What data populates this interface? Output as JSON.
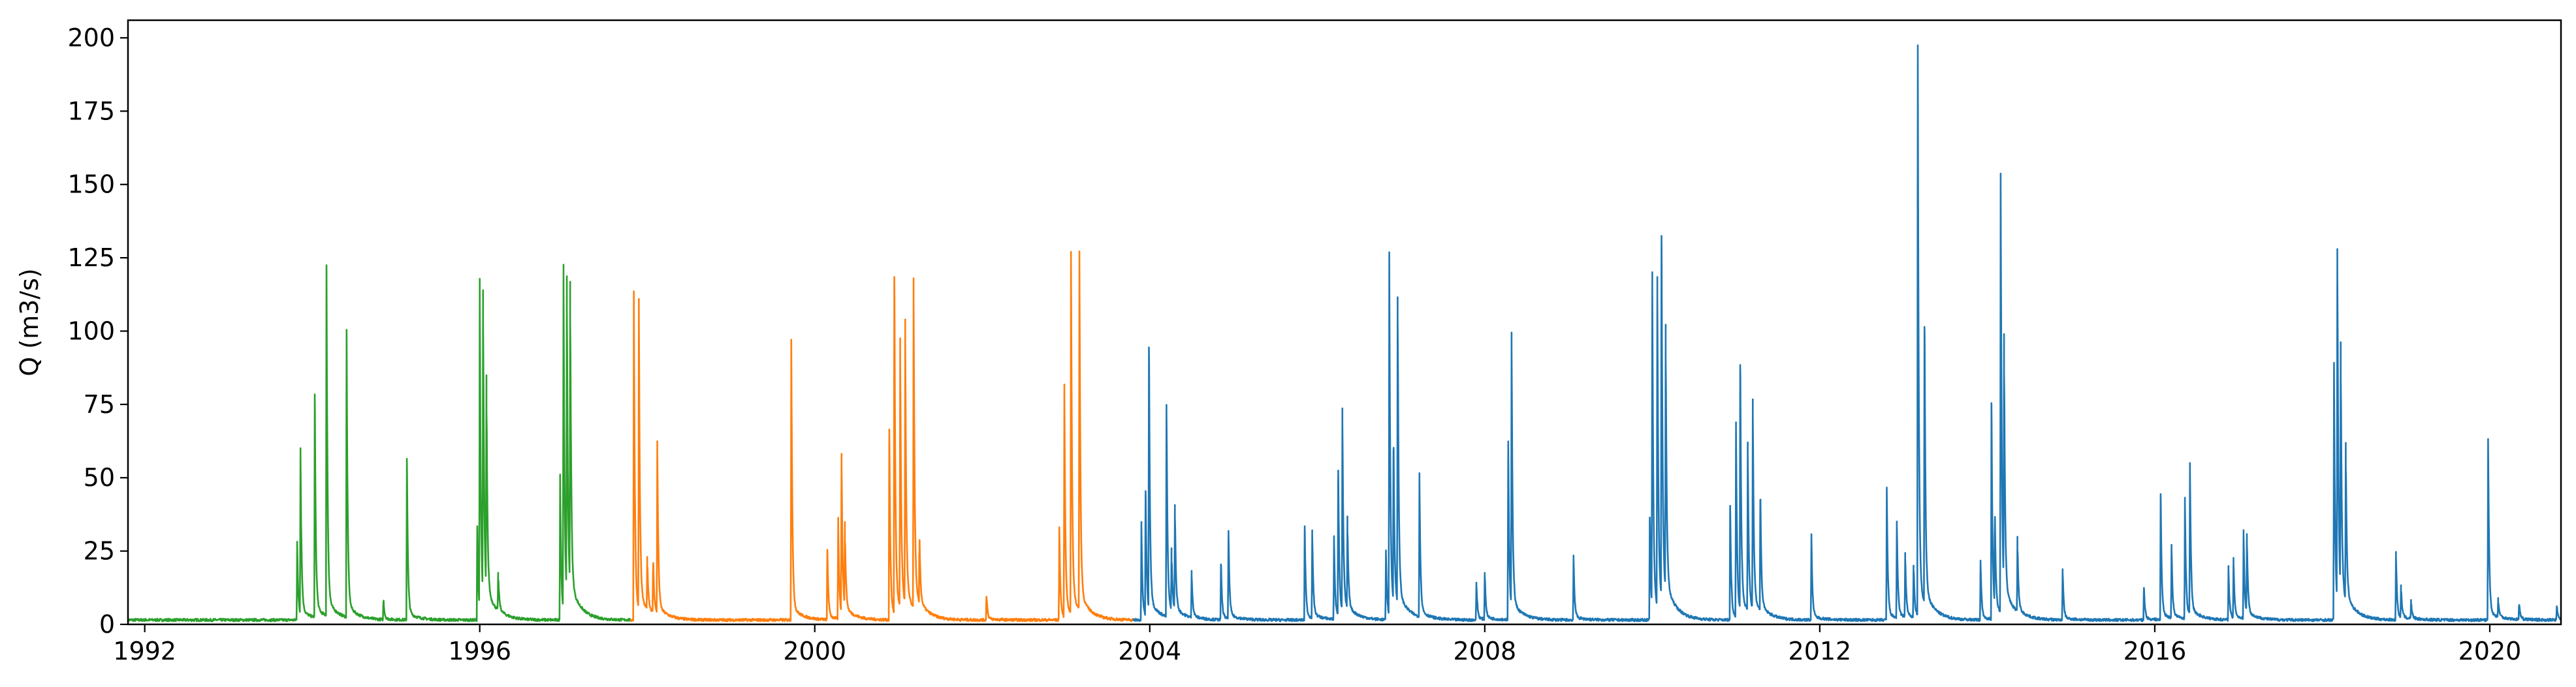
{
  "chart_data": {
    "type": "line",
    "title": "",
    "xlabel": "",
    "ylabel": "Q (m3/s)",
    "x_ticks": [
      "1992",
      "1996",
      "2000",
      "2004",
      "2008",
      "2012",
      "2016",
      "2020"
    ],
    "y_ticks": [
      "0",
      "25",
      "50",
      "75",
      "100",
      "125",
      "150",
      "175",
      "200"
    ],
    "xlim": [
      1991.8,
      2020.85
    ],
    "ylim": [
      0,
      206
    ],
    "grid": false,
    "legend": "none",
    "baseflow": 1.5,
    "series": [
      {
        "color": "#2ca02c",
        "x_range": [
          1991.8,
          1997.8
        ],
        "peaks": [
          {
            "x": 1993.82,
            "y": 27
          },
          {
            "x": 1993.86,
            "y": 57
          },
          {
            "x": 1994.03,
            "y": 78
          },
          {
            "x": 1994.17,
            "y": 122
          },
          {
            "x": 1994.41,
            "y": 100
          },
          {
            "x": 1994.85,
            "y": 7
          },
          {
            "x": 1995.13,
            "y": 56
          },
          {
            "x": 1995.97,
            "y": 33
          },
          {
            "x": 1996.0,
            "y": 112
          },
          {
            "x": 1996.04,
            "y": 103
          },
          {
            "x": 1996.08,
            "y": 72
          },
          {
            "x": 1996.22,
            "y": 13
          },
          {
            "x": 1996.96,
            "y": 50
          },
          {
            "x": 1997.0,
            "y": 118
          },
          {
            "x": 1997.04,
            "y": 107
          },
          {
            "x": 1997.08,
            "y": 104
          }
        ]
      },
      {
        "color": "#ff7f0e",
        "x_range": [
          1997.8,
          2003.8
        ],
        "peaks": [
          {
            "x": 1997.84,
            "y": 112
          },
          {
            "x": 1997.9,
            "y": 105
          },
          {
            "x": 1998.0,
            "y": 18
          },
          {
            "x": 1998.07,
            "y": 19
          },
          {
            "x": 1998.12,
            "y": 58
          },
          {
            "x": 1999.72,
            "y": 96
          },
          {
            "x": 2000.15,
            "y": 25
          },
          {
            "x": 2000.28,
            "y": 34
          },
          {
            "x": 2000.32,
            "y": 54
          },
          {
            "x": 2000.36,
            "y": 28
          },
          {
            "x": 2000.89,
            "y": 66
          },
          {
            "x": 2000.95,
            "y": 118
          },
          {
            "x": 2001.02,
            "y": 91
          },
          {
            "x": 2001.08,
            "y": 96
          },
          {
            "x": 2001.18,
            "y": 112
          },
          {
            "x": 2001.25,
            "y": 24
          },
          {
            "x": 2002.05,
            "y": 9
          },
          {
            "x": 2002.92,
            "y": 32
          },
          {
            "x": 2002.98,
            "y": 79
          },
          {
            "x": 2003.06,
            "y": 123
          },
          {
            "x": 2003.16,
            "y": 122
          }
        ]
      },
      {
        "color": "#1f77b4",
        "x_range": [
          2003.8,
          2020.85
        ],
        "peaks": [
          {
            "x": 2003.9,
            "y": 33
          },
          {
            "x": 2003.95,
            "y": 45
          },
          {
            "x": 2003.99,
            "y": 94
          },
          {
            "x": 2004.2,
            "y": 72
          },
          {
            "x": 2004.26,
            "y": 21
          },
          {
            "x": 2004.3,
            "y": 36
          },
          {
            "x": 2004.5,
            "y": 16
          },
          {
            "x": 2004.85,
            "y": 20
          },
          {
            "x": 2004.94,
            "y": 30
          },
          {
            "x": 2005.85,
            "y": 33
          },
          {
            "x": 2005.94,
            "y": 30
          },
          {
            "x": 2006.2,
            "y": 28
          },
          {
            "x": 2006.25,
            "y": 52
          },
          {
            "x": 2006.3,
            "y": 69
          },
          {
            "x": 2006.36,
            "y": 31
          },
          {
            "x": 2006.82,
            "y": 24
          },
          {
            "x": 2006.86,
            "y": 124
          },
          {
            "x": 2006.91,
            "y": 59
          },
          {
            "x": 2006.96,
            "y": 104
          },
          {
            "x": 2007.22,
            "y": 49
          },
          {
            "x": 2007.9,
            "y": 13
          },
          {
            "x": 2008.0,
            "y": 16
          },
          {
            "x": 2008.28,
            "y": 61
          },
          {
            "x": 2008.32,
            "y": 94
          },
          {
            "x": 2009.06,
            "y": 22
          },
          {
            "x": 2009.97,
            "y": 36
          },
          {
            "x": 2010.0,
            "y": 114
          },
          {
            "x": 2010.06,
            "y": 112
          },
          {
            "x": 2010.11,
            "y": 132
          },
          {
            "x": 2010.16,
            "y": 90
          },
          {
            "x": 2010.93,
            "y": 40
          },
          {
            "x": 2011.0,
            "y": 66
          },
          {
            "x": 2011.05,
            "y": 88
          },
          {
            "x": 2011.14,
            "y": 57
          },
          {
            "x": 2011.2,
            "y": 71
          },
          {
            "x": 2011.29,
            "y": 42
          },
          {
            "x": 2011.9,
            "y": 29
          },
          {
            "x": 2012.8,
            "y": 45
          },
          {
            "x": 2012.92,
            "y": 33
          },
          {
            "x": 2013.02,
            "y": 22
          },
          {
            "x": 2013.12,
            "y": 18
          },
          {
            "x": 2013.17,
            "y": 197
          },
          {
            "x": 2013.25,
            "y": 101
          },
          {
            "x": 2013.92,
            "y": 20
          },
          {
            "x": 2014.05,
            "y": 75
          },
          {
            "x": 2014.09,
            "y": 33
          },
          {
            "x": 2014.16,
            "y": 150
          },
          {
            "x": 2014.2,
            "y": 85
          },
          {
            "x": 2014.36,
            "y": 25
          },
          {
            "x": 2014.9,
            "y": 17
          },
          {
            "x": 2015.87,
            "y": 12
          },
          {
            "x": 2016.07,
            "y": 44
          },
          {
            "x": 2016.2,
            "y": 25
          },
          {
            "x": 2016.36,
            "y": 41
          },
          {
            "x": 2016.42,
            "y": 52
          },
          {
            "x": 2016.88,
            "y": 18
          },
          {
            "x": 2016.94,
            "y": 20
          },
          {
            "x": 2017.06,
            "y": 30
          },
          {
            "x": 2017.1,
            "y": 27
          },
          {
            "x": 2018.14,
            "y": 88
          },
          {
            "x": 2018.18,
            "y": 120
          },
          {
            "x": 2018.22,
            "y": 84
          },
          {
            "x": 2018.28,
            "y": 53
          },
          {
            "x": 2018.88,
            "y": 23
          },
          {
            "x": 2018.94,
            "y": 11
          },
          {
            "x": 2019.06,
            "y": 6
          },
          {
            "x": 2019.98,
            "y": 62
          },
          {
            "x": 2020.1,
            "y": 6
          },
          {
            "x": 2020.35,
            "y": 6
          },
          {
            "x": 2020.8,
            "y": 5
          }
        ]
      }
    ]
  }
}
